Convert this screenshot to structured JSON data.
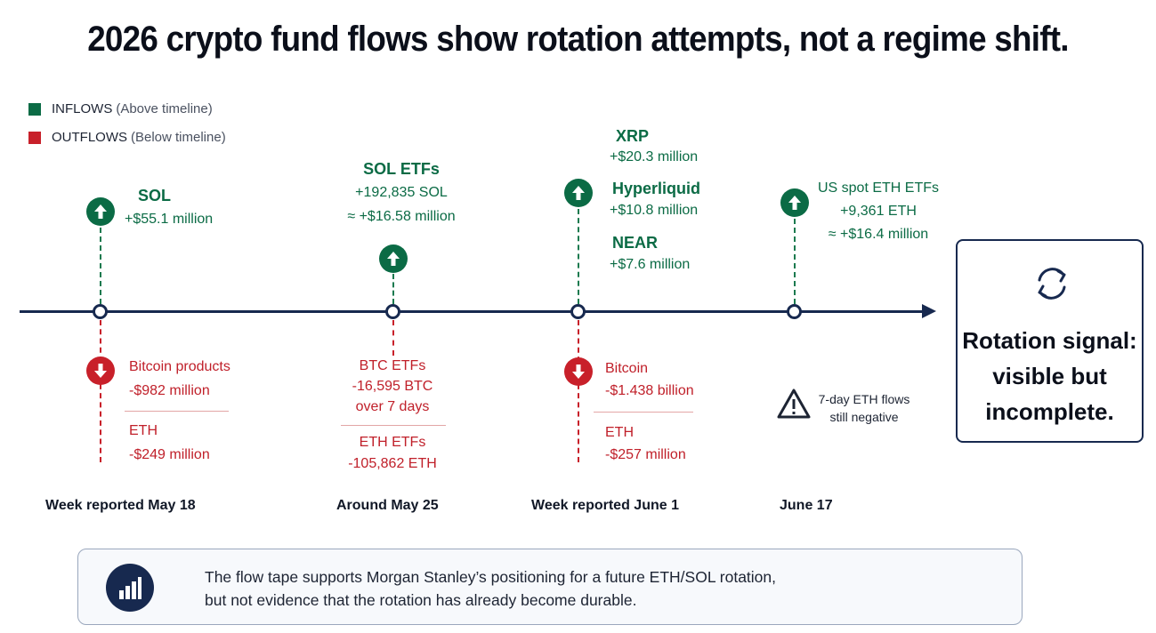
{
  "title": "2026 crypto fund flows show rotation attempts, not a regime shift.",
  "legend": {
    "inflows": {
      "label": "INFLOWS",
      "note": "(Above timeline)",
      "color": "#0b6b45"
    },
    "outflows": {
      "label": "OUTFLOWS",
      "note": "(Below timeline)",
      "color": "#c8202a"
    }
  },
  "events": [
    {
      "date": "Week reported May 18",
      "inflows": [
        {
          "name": "SOL",
          "value": "+$55.1 million"
        }
      ],
      "outflows": [
        {
          "name": "Bitcoin products",
          "value": "-$982 million"
        },
        {
          "name": "ETH",
          "value": "-$249 million"
        }
      ]
    },
    {
      "date": "Around  May 25",
      "inflows": [
        {
          "name": "SOL ETFs",
          "value": "+192,835 SOL",
          "value2": "≈ +$16.58 million"
        }
      ],
      "outflows": [
        {
          "name": "BTC ETFs",
          "value": "-16,595 BTC",
          "value2": "over 7 days"
        },
        {
          "name": "ETH ETFs",
          "value": "-105,862 ETH"
        }
      ]
    },
    {
      "date": "Week reported June 1",
      "inflows": [
        {
          "name": "XRP",
          "value": "+$20.3 million"
        },
        {
          "name": "Hyperliquid",
          "value": "+$10.8 million"
        },
        {
          "name": "NEAR",
          "value": "+$7.6 million"
        }
      ],
      "outflows": [
        {
          "name": "Bitcoin",
          "value": "-$1.438 billion"
        },
        {
          "name": "ETH",
          "value": "-$257 million"
        }
      ]
    },
    {
      "date": "June 17",
      "inflows": [
        {
          "name": "US spot ETH ETFs",
          "value": "+9,361 ETH",
          "value2": "≈ +$16.4 million"
        }
      ],
      "warning": {
        "line1": "7-day ETH flows",
        "line2": "still negative",
        "icon": "warning-triangle-icon"
      }
    }
  ],
  "signal": {
    "line1": "Rotation signal:",
    "line2": "visible but",
    "line3": "incomplete.",
    "icon": "rotate-arrows-icon"
  },
  "footer": {
    "line1": "The flow tape supports Morgan Stanley’s positioning for a future ETH/SOL rotation,",
    "line2": "but not evidence that the rotation has already become durable.",
    "icon": "bar-chart-icon"
  },
  "colors": {
    "navy": "#17294f",
    "green": "#0b6b45",
    "red": "#c8202a"
  }
}
